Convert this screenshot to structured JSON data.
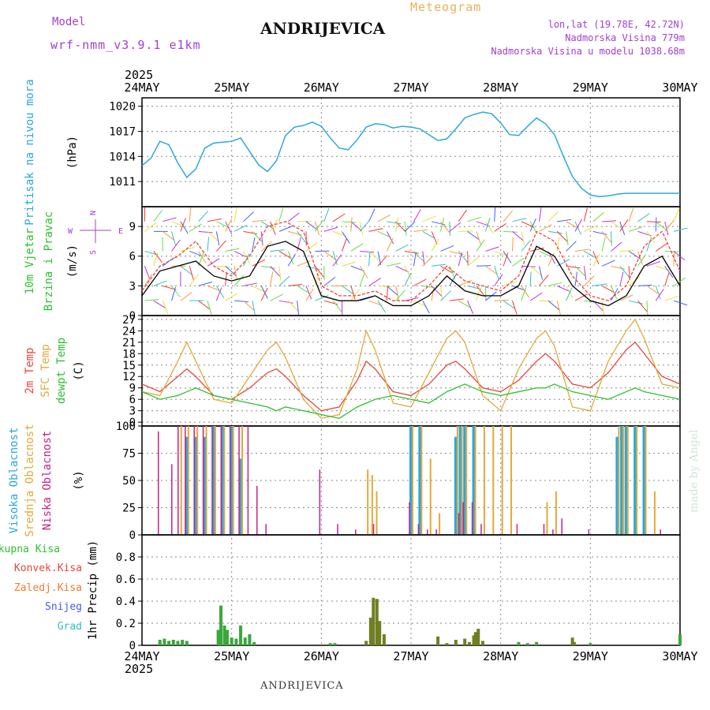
{
  "header": {
    "meteogram_label": "Meteogram",
    "location_title": "ANDRIJEVICA",
    "model_label": "Model",
    "model_name": "wrf-nmm_v3.9.1 e1km",
    "coords": "lon,lat (19.78E, 42.72N)",
    "elevation": "Nadmorska Visina 779m",
    "model_elevation": "Nadmorska Visina u modelu 1038.68m"
  },
  "footer": {
    "location": "ANDRIJEVICA",
    "watermark": "made by Angel"
  },
  "time_axis": {
    "year": "2025",
    "labels": [
      "24MAY",
      "25MAY",
      "26MAY",
      "27MAY",
      "28MAY",
      "29MAY",
      "30MAY"
    ]
  },
  "colors": {
    "pressure": "#2aa7e0",
    "temp2m": "#e8453c",
    "sfc": "#e2a93a",
    "dewpt": "#2ec02e",
    "cloud_high": "#2aa7e0",
    "cloud_mid": "#e2a93a",
    "cloud_low": "#c8208a",
    "precip": "#3aa83a",
    "precip_dark": "#6f7f22"
  },
  "chart_data": [
    {
      "type": "line",
      "name": "pressure",
      "ylabel_left": "Pritisak na nivou mora",
      "ylabel_unit": "(hPa)",
      "yticks": [
        "1011",
        "1014",
        "1017",
        "1020"
      ],
      "ylim": [
        1008,
        1021
      ],
      "x_days": [
        0,
        0.1,
        0.2,
        0.3,
        0.4,
        0.5,
        0.6,
        0.7,
        0.8,
        0.9,
        1.0,
        1.1,
        1.2,
        1.3,
        1.4,
        1.5,
        1.6,
        1.7,
        1.8,
        1.9,
        2.0,
        2.1,
        2.2,
        2.3,
        2.4,
        2.5,
        2.6,
        2.7,
        2.8,
        2.9,
        3.0,
        3.1,
        3.2,
        3.3,
        3.4,
        3.5,
        3.6,
        3.7,
        3.8,
        3.9,
        4.0,
        4.1,
        4.2,
        4.3,
        4.4,
        4.5,
        4.6,
        4.7,
        4.8,
        4.9,
        5.0,
        5.1,
        5.2,
        5.3,
        5.4,
        5.5,
        5.6,
        5.7,
        5.8,
        5.9,
        6.0
      ],
      "values": [
        1012.9,
        1013.8,
        1015.8,
        1015.4,
        1013.2,
        1011.5,
        1012.5,
        1015.0,
        1015.6,
        1015.7,
        1015.8,
        1016.2,
        1014.6,
        1013.0,
        1012.2,
        1013.5,
        1016.5,
        1017.5,
        1017.7,
        1018.1,
        1017.6,
        1016.2,
        1015.0,
        1014.8,
        1016.0,
        1017.5,
        1017.9,
        1017.8,
        1017.4,
        1017.6,
        1017.5,
        1017.3,
        1016.6,
        1015.9,
        1016.1,
        1017.3,
        1018.6,
        1019.0,
        1019.3,
        1019.1,
        1018.0,
        1016.6,
        1016.5,
        1017.6,
        1018.6,
        1017.9,
        1016.6,
        1014.0,
        1011.6,
        1010.2,
        1009.4,
        1009.2,
        1009.3,
        1009.5,
        1009.6,
        1009.6,
        1009.6,
        1009.6,
        1009.6,
        1009.6,
        1009.6
      ]
    },
    {
      "type": "line",
      "name": "wind",
      "ylabel_left": "10m Vjetar",
      "ylabel_left2": "Brzina i Pravac",
      "ylabel_unit": "(m/s)",
      "compass": [
        "N",
        "W",
        "E",
        "S"
      ],
      "yticks": [
        "0",
        "3",
        "6",
        "9"
      ],
      "ylim": [
        0,
        11
      ],
      "x_days": [
        0,
        0.2,
        0.4,
        0.6,
        0.8,
        1.0,
        1.2,
        1.4,
        1.6,
        1.8,
        2.0,
        2.2,
        2.4,
        2.6,
        2.8,
        3.0,
        3.2,
        3.4,
        3.6,
        3.8,
        4.0,
        4.2,
        4.4,
        4.6,
        4.8,
        5.0,
        5.2,
        5.4,
        5.6,
        5.8,
        6.0
      ],
      "series": [
        {
          "name": "speed",
          "values": [
            2.0,
            4.5,
            5.0,
            5.5,
            4.0,
            3.5,
            4.0,
            7.0,
            7.5,
            6.5,
            2.0,
            1.5,
            1.5,
            2.0,
            1.0,
            1.0,
            2.0,
            4.0,
            2.5,
            2.0,
            2.0,
            3.0,
            7.0,
            6.0,
            3.0,
            1.5,
            1.0,
            2.0,
            5.0,
            6.0,
            3.0
          ]
        },
        {
          "name": "gust",
          "values": [
            2.5,
            5.0,
            6.0,
            7.5,
            5.0,
            4.0,
            6.0,
            9.0,
            9.5,
            8.5,
            3.0,
            2.0,
            2.0,
            2.5,
            1.5,
            1.5,
            3.0,
            5.0,
            3.5,
            3.0,
            2.5,
            4.0,
            8.5,
            7.5,
            4.0,
            2.0,
            1.5,
            3.0,
            7.0,
            8.5,
            4.5
          ]
        }
      ]
    },
    {
      "type": "line",
      "name": "temperature",
      "ylabel_left": "2m Temp",
      "ylabel_left2": "SFC Temp",
      "ylabel_left3": "dewpt Temp",
      "ylabel_unit": "(C)",
      "yticks": [
        "0",
        "3",
        "6",
        "9",
        "12",
        "15",
        "18",
        "21",
        "24",
        "27"
      ],
      "ylim": [
        -1,
        28
      ],
      "x_days": [
        0,
        0.2,
        0.4,
        0.5,
        0.6,
        0.8,
        1.0,
        1.2,
        1.4,
        1.5,
        1.6,
        1.8,
        2.0,
        2.2,
        2.4,
        2.5,
        2.6,
        2.8,
        3.0,
        3.2,
        3.4,
        3.5,
        3.6,
        3.8,
        4.0,
        4.2,
        4.4,
        4.5,
        4.6,
        4.8,
        5.0,
        5.2,
        5.4,
        5.5,
        5.6,
        5.8,
        6.0
      ],
      "series": [
        {
          "name": "2m",
          "values": [
            10,
            8,
            12,
            14,
            12,
            7,
            6,
            9,
            13,
            14,
            12,
            7,
            3,
            4,
            11,
            16,
            14,
            8,
            7,
            10,
            15,
            16,
            14,
            9,
            8,
            11,
            16,
            18,
            16,
            10,
            9,
            13,
            19,
            21,
            18,
            12,
            10
          ]
        },
        {
          "name": "sfc",
          "values": [
            8,
            7,
            16,
            21,
            16,
            6,
            5,
            12,
            19,
            21,
            17,
            6,
            1,
            2,
            14,
            24,
            19,
            5,
            4,
            13,
            22,
            24,
            21,
            7,
            3,
            14,
            22,
            24,
            20,
            4,
            3,
            16,
            24,
            27,
            22,
            10,
            9
          ]
        },
        {
          "name": "dew",
          "values": [
            8,
            6,
            7,
            8,
            9,
            7,
            6,
            5,
            4,
            3,
            4,
            3,
            2,
            1,
            4,
            5,
            6,
            7,
            6,
            5,
            8,
            9,
            10,
            8,
            7,
            8,
            9,
            9,
            10,
            8,
            7,
            6,
            8,
            9,
            8,
            7,
            6
          ]
        }
      ]
    },
    {
      "type": "bar",
      "name": "clouds",
      "ylabel_left": "Visoka Oblacnost",
      "ylabel_left2": "Srednja Oblacnost",
      "ylabel_left3": "Niska Oblacnost",
      "ylabel_unit": "(%)",
      "yticks": [
        "0",
        "25",
        "50",
        "75",
        "100"
      ],
      "ylim": [
        0,
        100
      ],
      "x_days": [
        0.2,
        0.35,
        0.42,
        0.5,
        0.6,
        0.7,
        0.8,
        0.9,
        1.0,
        1.1,
        1.2,
        1.3,
        1.4,
        2.0,
        2.2,
        2.4,
        2.5,
        2.55,
        2.6,
        2.7,
        3.0,
        3.1,
        3.2,
        3.3,
        3.5,
        3.55,
        3.6,
        3.7,
        3.8,
        3.9,
        4.0,
        4.1,
        4.2,
        4.5,
        4.6,
        4.7,
        5.0,
        5.3,
        5.35,
        5.4,
        5.5,
        5.6,
        5.7,
        5.8
      ],
      "series": [
        {
          "name": "high",
          "values": [
            0,
            0,
            0,
            90,
            90,
            90,
            100,
            100,
            100,
            70,
            0,
            0,
            0,
            0,
            0,
            0,
            0,
            0,
            0,
            0,
            100,
            100,
            0,
            0,
            90,
            100,
            100,
            100,
            0,
            0,
            0,
            0,
            0,
            0,
            0,
            0,
            0,
            90,
            100,
            100,
            100,
            100,
            0,
            0
          ]
        },
        {
          "name": "mid",
          "values": [
            0,
            0,
            100,
            100,
            100,
            100,
            100,
            100,
            100,
            100,
            0,
            0,
            0,
            0,
            0,
            0,
            60,
            55,
            40,
            0,
            100,
            100,
            70,
            20,
            100,
            100,
            100,
            100,
            100,
            100,
            100,
            100,
            0,
            30,
            40,
            0,
            0,
            100,
            100,
            100,
            100,
            100,
            40,
            0
          ]
        },
        {
          "name": "low",
          "values": [
            95,
            65,
            100,
            100,
            100,
            100,
            100,
            100,
            100,
            100,
            100,
            45,
            10,
            60,
            10,
            5,
            0,
            0,
            10,
            0,
            30,
            10,
            5,
            5,
            0,
            20,
            30,
            30,
            10,
            0,
            0,
            0,
            10,
            10,
            5,
            15,
            5,
            0,
            0,
            0,
            0,
            0,
            0,
            5
          ]
        }
      ]
    },
    {
      "type": "bar",
      "name": "precipitation",
      "ylabel_left": "Ukupna Kisa",
      "ylabel_left2": "Konvek.Kisa",
      "ylabel_left3": "Zaledj.Kisa",
      "ylabel_left4": "Snijeg",
      "ylabel_left5": "Grad",
      "ylabel_unit": "1hr Precip (mm)",
      "yticks": [
        "0",
        "0.2",
        "0.4",
        "0.6",
        "0.8"
      ],
      "ylim": [
        0,
        1.0
      ],
      "x_days": [
        0.2,
        0.25,
        0.3,
        0.35,
        0.4,
        0.45,
        0.5,
        0.85,
        0.88,
        0.92,
        0.95,
        1.0,
        1.05,
        1.1,
        1.15,
        1.2,
        1.25,
        2.1,
        2.15,
        2.5,
        2.55,
        2.58,
        2.62,
        2.65,
        2.7,
        3.3,
        3.4,
        3.5,
        3.6,
        3.65,
        3.7,
        3.72,
        3.75,
        3.8,
        4.2,
        4.3,
        4.4,
        4.8,
        4.82,
        5.0,
        6.0
      ],
      "values": [
        0.05,
        0.06,
        0.04,
        0.05,
        0.04,
        0.05,
        0.04,
        0.14,
        0.36,
        0.18,
        0.14,
        0.07,
        0.06,
        0.18,
        0.07,
        0.1,
        0.03,
        0.02,
        0.02,
        0.04,
        0.25,
        0.43,
        0.42,
        0.22,
        0.1,
        0.08,
        0.02,
        0.05,
        0.06,
        0.03,
        0.09,
        0.12,
        0.15,
        0.04,
        0.03,
        0.02,
        0.03,
        0.07,
        0.03,
        0.02,
        0.1
      ]
    }
  ]
}
